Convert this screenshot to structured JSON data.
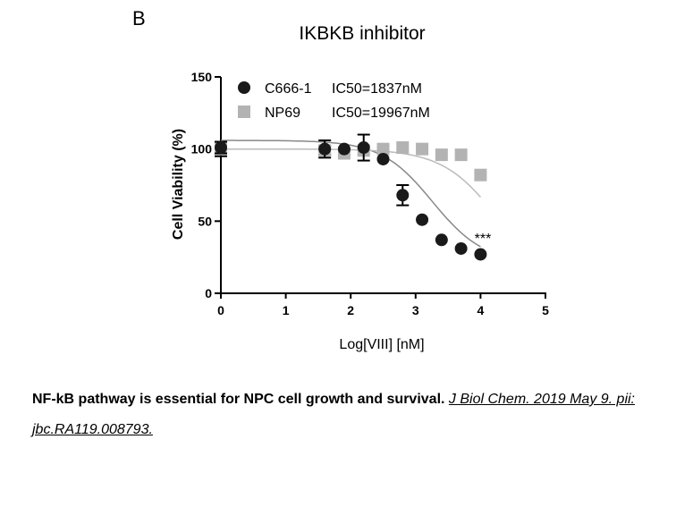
{
  "panel_label": "B",
  "chart_data": {
    "type": "scatter",
    "title": "IKBKB inhibitor",
    "xlabel": "Log[VIII] [nM]",
    "ylabel": "Cell Viability (%)",
    "xlim": [
      0,
      5
    ],
    "ylim": [
      0,
      150
    ],
    "x_ticks": [
      "0",
      "1",
      "2",
      "3",
      "4",
      "5"
    ],
    "y_ticks": [
      "0",
      "50",
      "100",
      "150"
    ],
    "legend_position": "top-left",
    "annotation": "***",
    "series": [
      {
        "name": "C666-1",
        "ic50_label": "IC50=1837nM",
        "marker": "circle",
        "color": "#1a1a1a",
        "x": [
          0,
          1.6,
          1.9,
          2.2,
          2.5,
          2.8,
          3.1,
          3.4,
          3.7,
          4.0
        ],
        "y": [
          101,
          100,
          100,
          101,
          93,
          68,
          51,
          37,
          31,
          27
        ],
        "error": [
          4,
          6,
          0,
          9,
          0,
          7,
          0,
          0,
          0,
          0
        ],
        "fit": {
          "bottom": 21,
          "top": 106,
          "logIC50": 3.26,
          "hill": 1.1
        }
      },
      {
        "name": "NP69",
        "ic50_label": "IC50=19967nM",
        "marker": "square",
        "color": "#b3b3b3",
        "x": [
          0,
          1.6,
          1.9,
          2.2,
          2.5,
          2.8,
          3.1,
          3.4,
          3.7,
          4.0
        ],
        "y": [
          100,
          99,
          97,
          99,
          100,
          101,
          100,
          96,
          96,
          82
        ],
        "error": [
          5,
          3,
          0,
          0,
          0,
          0,
          0,
          0,
          0,
          0
        ],
        "fit": {
          "bottom": 0,
          "top": 100,
          "logIC50": 4.3,
          "hill": 1.0
        }
      }
    ]
  },
  "caption": {
    "text": "NF-kB pathway is essential for NPC cell growth and survival.",
    "citation": "J Biol Chem. 2019 May 9. pii: jbc.RA119.008793."
  }
}
